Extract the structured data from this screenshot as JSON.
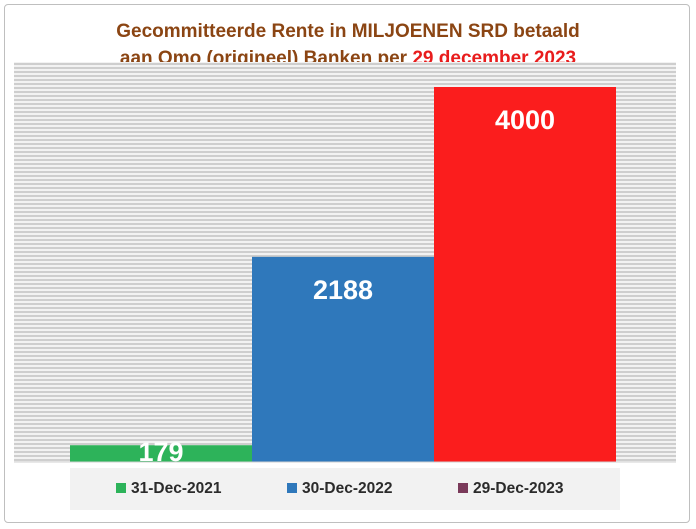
{
  "chart_data": {
    "type": "bar",
    "title_line1": "Gecommitteerde Rente in MILJOENEN SRD betaald",
    "title_line2_prefix": "aan Omo (origineel) Banken per ",
    "title_line2_highlight": "29 december 2023",
    "categories": [
      "31-Dec-2021",
      "30-Dec-2022",
      "29-Dec-2023"
    ],
    "values": [
      179,
      2188,
      4000
    ],
    "data_labels": [
      "179",
      "2188",
      "4000"
    ],
    "colors": [
      "#2db35a",
      "#2f78bb",
      "#fb1d1d"
    ],
    "legend_marker_colors": [
      "#2db35a",
      "#2f78bb",
      "#7a3a5a"
    ],
    "ylim": [
      0,
      4000
    ],
    "grid": true,
    "legend_position": "bottom",
    "title_color": "#8b4513",
    "highlight_color": "#e81c1c"
  }
}
